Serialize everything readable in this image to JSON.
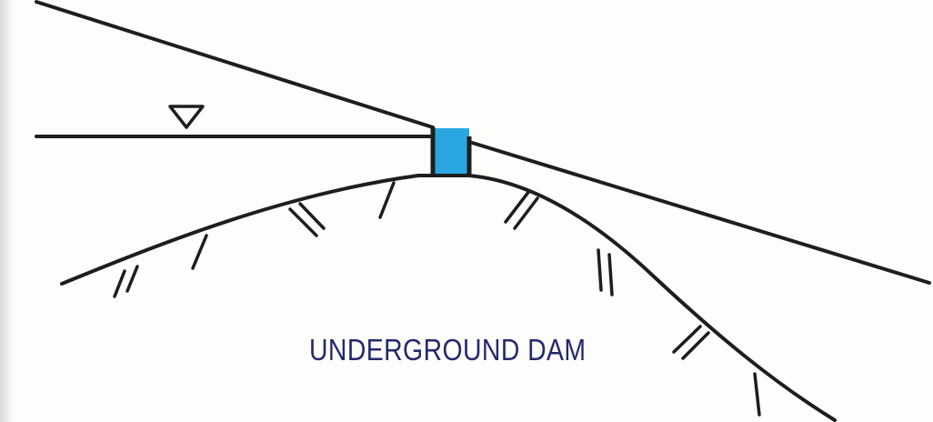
{
  "diagram": {
    "caption": "UNDERGROUND DAM",
    "colors": {
      "line": "#1e1e1e",
      "dam_fill": "#2aa7e0",
      "caption_text": "#232a6b",
      "background": "#fdfdfc"
    },
    "elements": [
      "ground-surface",
      "water-table",
      "water-table-symbol",
      "impermeable-bedrock",
      "underground-dam",
      "hatch-marks"
    ]
  }
}
